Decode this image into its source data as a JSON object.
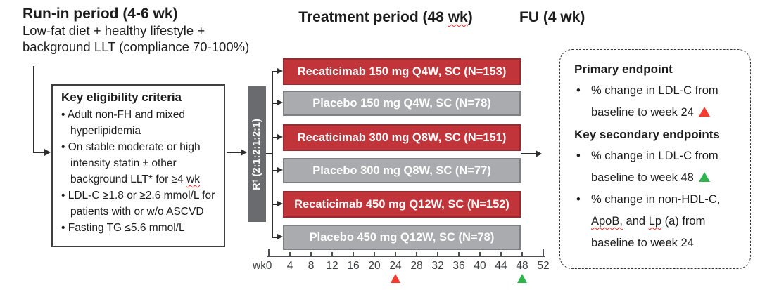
{
  "headers": {
    "runin_title": "Run-in period (4-6 wk)",
    "runin_line1": "Low-fat diet + healthy lifestyle +",
    "runin_line2": "background LLT (compliance 70-100%)",
    "treatment_title_segments": [
      {
        "t": "Treatment period (48 "
      },
      {
        "t": "wk",
        "wavy": true
      },
      {
        "t": ")"
      }
    ],
    "fu_title": "FU (4 wk)"
  },
  "eligibility": {
    "title": "Key eligibility criteria",
    "bullets": [
      {
        "lines": [
          [
            {
              "t": "Adult non-FH and mixed"
            }
          ],
          [
            {
              "t": "hyperlipidemia"
            }
          ]
        ]
      },
      {
        "lines": [
          [
            {
              "t": "On stable moderate or high"
            }
          ],
          [
            {
              "t": "intensity statin ± other"
            }
          ],
          [
            {
              "t": "background LLT* for ≥4 "
            },
            {
              "t": "wk",
              "wavy": true
            }
          ]
        ]
      },
      {
        "lines": [
          [
            {
              "t": "LDL-C ≥1.8 or ≥2.6 mmol/L for"
            }
          ],
          [
            {
              "t": "patients with or w/o ASCVD"
            }
          ]
        ]
      },
      {
        "lines": [
          [
            {
              "t": "Fasting TG ≤5.6 mmol/L"
            }
          ]
        ]
      }
    ]
  },
  "randomization": {
    "label_r": "R",
    "label_sup": "†",
    "label_ratio": " (2:1:2:1:2:1)"
  },
  "arms": [
    {
      "label": "Recaticimab 150 mg Q4W, SC (N=153)",
      "type": "active"
    },
    {
      "label": "Placebo 150 mg Q4W, SC (N=78)",
      "type": "placebo"
    },
    {
      "label": "Recaticimab 300 mg Q8W, SC (N=151)",
      "type": "active"
    },
    {
      "label": "Placebo 300 mg Q8W, SC (N=77)",
      "type": "placebo"
    },
    {
      "label": "Recaticimab 450 mg Q12W, SC (N=152)",
      "type": "active"
    },
    {
      "label": "Placebo 450 mg Q12W, SC (N=78)",
      "type": "placebo"
    }
  ],
  "timeline": {
    "unit_label": "wk",
    "tick_weeks": [
      0,
      4,
      8,
      12,
      16,
      20,
      24,
      28,
      32,
      36,
      40,
      44,
      48,
      52
    ],
    "markers": [
      {
        "week": 24,
        "color": "#f43b30",
        "name": "primary-endpoint-week-marker"
      },
      {
        "week": 48,
        "color": "#2fb34d",
        "name": "secondary-endpoint-week-marker"
      }
    ]
  },
  "endpoints": {
    "sections": [
      {
        "name": "primary-endpoint",
        "title": "Primary endpoint",
        "bullets": [
          {
            "lines": [
              [
                {
                  "t": "% change in LDL-C from"
                }
              ],
              [
                {
                  "t": "baseline to week 24 "
                },
                {
                  "tri": "#f43b30",
                  "name": "red-triangle-icon"
                }
              ]
            ]
          }
        ]
      },
      {
        "name": "key-secondary-endpoints",
        "title": "Key secondary endpoints",
        "bullets": [
          {
            "lines": [
              [
                {
                  "t": "% change in LDL-C from"
                }
              ],
              [
                {
                  "t": "baseline to week 48 "
                },
                {
                  "tri": "#2fb34d",
                  "name": "green-triangle-icon"
                }
              ]
            ]
          },
          {
            "lines": [
              [
                {
                  "t": "% change in non-HDL-C,"
                }
              ],
              [
                {
                  "t": "ApoB,",
                  "wavy": true
                },
                {
                  "t": " and "
                },
                {
                  "t": "Lp",
                  "wavy": true
                },
                {
                  "t": " (a) from"
                }
              ],
              [
                {
                  "t": "baseline to week 24"
                }
              ]
            ]
          }
        ]
      }
    ]
  },
  "colors": {
    "active_fill": "#c13439",
    "active_border": "#992b30",
    "placebo_fill": "#a9abae",
    "placebo_border": "#7e8083",
    "randomization_fill": "#696b6e",
    "marker_red": "#f43b30",
    "marker_green": "#2fb34d"
  }
}
